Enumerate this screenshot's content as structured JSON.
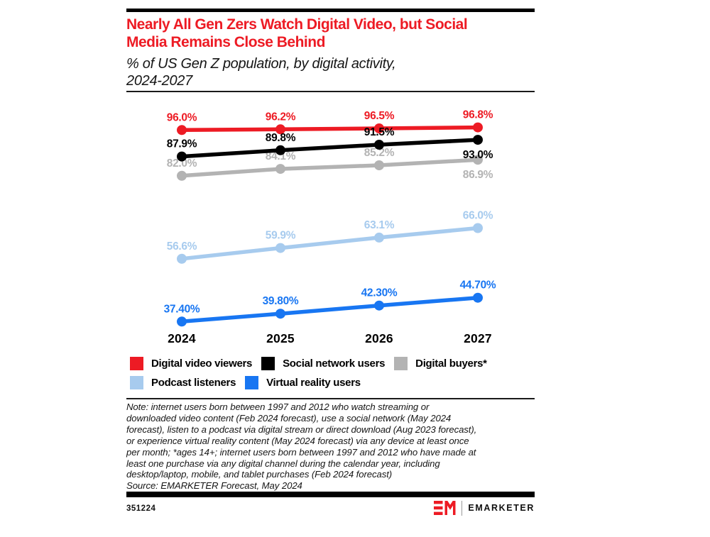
{
  "header": {
    "title_lines": [
      "Nearly All Gen Zers Watch Digital Video, but Social",
      "Media Remains Close Behind"
    ],
    "subtitle_lines": [
      "% of US Gen Z population, by digital activity,",
      "2024-2027"
    ]
  },
  "colors": {
    "brand_red": "#ed1b24",
    "black": "#000000",
    "gray": "#b3b3b3",
    "light_blue": "#a7cbee",
    "blue": "#1876f2"
  },
  "chart_data": {
    "type": "line",
    "title": "Nearly All Gen Zers Watch Digital Video, but Social Media Remains Close Behind",
    "subtitle": "% of US Gen Z population, by digital activity, 2024-2027",
    "categories": [
      "2024",
      "2025",
      "2026",
      "2027"
    ],
    "unit": "%",
    "ylim": [
      30,
      100
    ],
    "grid": false,
    "axes_drawn": false,
    "legend_position": "bottom",
    "series": [
      {
        "name": "Digital video viewers",
        "color": "#ed1b24",
        "values": [
          96.0,
          96.2,
          96.5,
          96.8
        ],
        "labels": [
          "96.0%",
          "96.2%",
          "96.5%",
          "96.8%"
        ],
        "label_side": [
          "above",
          "above",
          "above",
          "above"
        ]
      },
      {
        "name": "Social network users",
        "color": "#000000",
        "values": [
          87.9,
          89.8,
          91.5,
          93.0
        ],
        "labels": [
          "87.9%",
          "89.8%",
          "91.5%",
          "93.0%"
        ],
        "label_side": [
          "above",
          "above",
          "above",
          "below"
        ]
      },
      {
        "name": "Digital buyers*",
        "color": "#b3b3b3",
        "values": [
          82.0,
          84.1,
          85.2,
          86.9
        ],
        "labels": [
          "82.0%",
          "84.1%",
          "85.2%",
          "86.9%"
        ],
        "label_side": [
          "above",
          "above",
          "above",
          "below"
        ],
        "labels_under_lines": true
      },
      {
        "name": "Podcast listeners",
        "color": "#a7cbee",
        "values": [
          56.6,
          59.9,
          63.1,
          66.0
        ],
        "labels": [
          "56.6%",
          "59.9%",
          "63.1%",
          "66.0%"
        ],
        "label_side": [
          "above",
          "above",
          "above",
          "above"
        ]
      },
      {
        "name": "Virtual reality users",
        "color": "#1876f2",
        "values": [
          37.4,
          39.8,
          42.3,
          44.7
        ],
        "labels": [
          "37.40%",
          "39.80%",
          "42.30%",
          "44.70%"
        ],
        "label_side": [
          "above",
          "above",
          "above",
          "above"
        ]
      }
    ]
  },
  "legend": {
    "rows": [
      [
        {
          "label": "Digital video viewers",
          "color": "#ed1b24"
        },
        {
          "label": "Social network users",
          "color": "#000000"
        },
        {
          "label": "Digital buyers*",
          "color": "#b3b3b3"
        }
      ],
      [
        {
          "label": "Podcast listeners",
          "color": "#a7cbee"
        },
        {
          "label": "Virtual reality users",
          "color": "#1876f2"
        }
      ]
    ]
  },
  "note": {
    "lines": [
      "Note: internet users born between 1997 and 2012 who watch streaming or",
      "downloaded video content (Feb 2024 forecast), use a social network (May 2024",
      "forecast), listen to a podcast via digital stream or direct download (Aug 2023 forecast),",
      "or experience virtual reality content (May 2024 forecast) via any device at least once",
      "per month; *ages 14+; internet users born between 1997 and 2012 who have made at",
      "least one purchase via any digital channel during the calendar year, including",
      "desktop/laptop, mobile, and tablet purchases (Feb 2024 forecast)"
    ],
    "source": "Source: EMARKETER Forecast, May 2024"
  },
  "footer": {
    "chart_id": "351224",
    "brand": "EMARKETER"
  }
}
